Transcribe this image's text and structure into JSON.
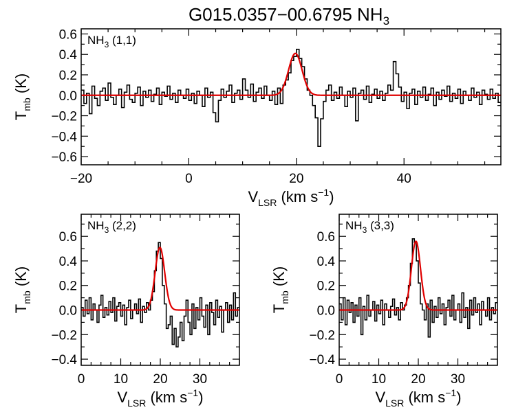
{
  "figure": {
    "title": "G015.0357−00.6795 NH",
    "title_sub": "3"
  },
  "chart_data": [
    {
      "type": "line",
      "panel_label": "NH3 (1,1)",
      "label_main": "NH",
      "label_sub": "3",
      "label_tail": " (1,1)",
      "xlabel": "V_LSR (km s^-1)",
      "ylabel": "T_mb (K)",
      "xlim": [
        -20,
        58
      ],
      "ylim": [
        -0.68,
        0.65
      ],
      "xticks": [
        -20,
        0,
        20,
        40
      ],
      "yticks": [
        -0.6,
        -0.4,
        -0.2,
        0.0,
        0.2,
        0.4,
        0.6
      ],
      "series": [
        {
          "kind": "step",
          "color": "#000000",
          "x": [
            -20,
            -19.5,
            -19,
            -18.5,
            -18,
            -17.5,
            -17,
            -16.5,
            -16,
            -15.5,
            -15,
            -14.5,
            -14,
            -13.5,
            -13,
            -12.5,
            -12,
            -11.5,
            -11,
            -10.5,
            -10,
            -9.5,
            -9,
            -8.5,
            -8,
            -7.5,
            -7,
            -6.5,
            -6,
            -5.5,
            -5,
            -4.5,
            -4,
            -3.5,
            -3,
            -2.5,
            -2,
            -1.5,
            -1,
            -0.5,
            0,
            0.5,
            1,
            1.5,
            2,
            2.5,
            3,
            3.5,
            4,
            4.5,
            5,
            5.5,
            6,
            6.5,
            7,
            7.5,
            8,
            8.5,
            9,
            9.5,
            10,
            10.5,
            11,
            11.5,
            12,
            12.5,
            13,
            13.5,
            14,
            14.5,
            15,
            15.5,
            16,
            16.5,
            17,
            17.5,
            18,
            18.5,
            19,
            19.5,
            20,
            20.5,
            21,
            21.5,
            22,
            22.5,
            23,
            23.5,
            24,
            24.5,
            25,
            25.5,
            26,
            26.5,
            27,
            27.5,
            28,
            28.5,
            29,
            29.5,
            30,
            30.5,
            31,
            31.5,
            32,
            32.5,
            33,
            33.5,
            34,
            34.5,
            35,
            35.5,
            36,
            36.5,
            37,
            37.5,
            38,
            38.5,
            39,
            39.5,
            40,
            40.5,
            41,
            41.5,
            42,
            42.5,
            43,
            43.5,
            44,
            44.5,
            45,
            45.5,
            46,
            46.5,
            47,
            47.5,
            48,
            48.5,
            49,
            49.5,
            50,
            50.5,
            51,
            51.5,
            52,
            52.5,
            53,
            53.5,
            54,
            54.5,
            55,
            55.5,
            56,
            56.5,
            57,
            57.5
          ],
          "y": [
            0.05,
            -0.08,
            0.02,
            -0.18,
            0.09,
            -0.03,
            -0.1,
            0.04,
            0.07,
            -0.05,
            0.12,
            -0.02,
            -0.09,
            0.0,
            0.06,
            -0.12,
            0.03,
            0.1,
            -0.04,
            -0.07,
            0.02,
            0.08,
            -0.1,
            0.04,
            -0.02,
            0.05,
            -0.06,
            0.01,
            0.07,
            -0.09,
            0.03,
            -0.01,
            0.09,
            -0.04,
            0.02,
            -0.07,
            0.05,
            0.0,
            -0.03,
            0.06,
            -0.05,
            0.02,
            -0.08,
            0.04,
            0.0,
            -0.11,
            0.07,
            -0.02,
            0.03,
            -0.17,
            -0.26,
            -0.05,
            0.06,
            -0.02,
            0.04,
            0.1,
            -0.07,
            0.02,
            0.05,
            -0.04,
            0.16,
            0.05,
            -0.02,
            0.11,
            -0.06,
            0.03,
            0.07,
            -0.03,
            0.09,
            0.0,
            -0.05,
            0.04,
            -0.09,
            0.07,
            -0.08,
            0.1,
            0.15,
            0.22,
            0.34,
            0.38,
            0.45,
            0.36,
            0.28,
            0.16,
            0.05,
            0.0,
            -0.1,
            -0.22,
            -0.5,
            -0.23,
            -0.06,
            0.05,
            0.1,
            -0.05,
            0.03,
            -0.03,
            0.08,
            0.0,
            -0.11,
            0.04,
            -0.02,
            0.07,
            -0.25,
            0.02,
            0.05,
            -0.04,
            0.09,
            -0.07,
            0.01,
            0.06,
            -0.03,
            0.04,
            -0.05,
            0.02,
            0.1,
            0.05,
            0.33,
            0.21,
            0.08,
            -0.06,
            0.03,
            -0.13,
            0.02,
            0.06,
            -0.09,
            0.04,
            -0.02,
            0.08,
            -0.05,
            0.01,
            0.07,
            -0.1,
            0.03,
            -0.04,
            0.05,
            -0.01,
            0.09,
            -0.06,
            0.02,
            -0.03,
            0.06,
            -0.08,
            0.04,
            0.0,
            -0.05,
            0.07,
            -0.02,
            0.03,
            -0.09,
            0.05,
            0.01,
            -0.04,
            0.06,
            -0.03,
            0.02,
            -0.07
          ]
        },
        {
          "kind": "gaussian",
          "color": "#e00000",
          "amp": 0.41,
          "center": 19.8,
          "sigma": 1.25
        }
      ]
    },
    {
      "type": "line",
      "panel_label": "NH3 (2,2)",
      "label_main": "NH",
      "label_sub": "3",
      "label_tail": " (2,2)",
      "xlabel": "V_LSR (km s^-1)",
      "ylabel": "T_mb (K)",
      "xlim": [
        0,
        40
      ],
      "ylim": [
        -0.45,
        0.78
      ],
      "xticks": [
        0,
        10,
        20,
        30
      ],
      "yticks": [
        -0.4,
        -0.2,
        0.0,
        0.2,
        0.4,
        0.6
      ],
      "series": [
        {
          "kind": "step",
          "color": "#000000",
          "x": [
            0,
            0.5,
            1,
            1.5,
            2,
            2.5,
            3,
            3.5,
            4,
            4.5,
            5,
            5.5,
            6,
            6.5,
            7,
            7.5,
            8,
            8.5,
            9,
            9.5,
            10,
            10.5,
            11,
            11.5,
            12,
            12.5,
            13,
            13.5,
            14,
            14.5,
            15,
            15.5,
            16,
            16.5,
            17,
            17.5,
            18,
            18.5,
            19,
            19.5,
            20,
            20.5,
            21,
            21.5,
            22,
            22.5,
            23,
            23.5,
            24,
            24.5,
            25,
            25.5,
            26,
            26.5,
            27,
            27.5,
            28,
            28.5,
            29,
            29.5,
            30,
            30.5,
            31,
            31.5,
            32,
            32.5,
            33,
            33.5,
            34,
            34.5,
            35,
            35.5,
            36,
            36.5,
            37,
            37.5,
            38,
            38.5,
            39,
            39.5
          ],
          "y": [
            0.02,
            -0.05,
            0.08,
            -0.03,
            0.1,
            -0.08,
            0.05,
            0.0,
            -0.1,
            0.04,
            0.12,
            -0.06,
            0.02,
            -0.04,
            0.07,
            -0.02,
            0.1,
            -0.09,
            0.03,
            0.06,
            -0.05,
            0.04,
            -0.12,
            0.02,
            0.08,
            -0.07,
            0.0,
            0.05,
            -0.03,
            0.09,
            -0.1,
            0.03,
            -0.02,
            0.06,
            0.0,
            0.08,
            0.15,
            0.32,
            0.48,
            0.55,
            0.42,
            0.2,
            0.05,
            -0.15,
            -0.12,
            -0.05,
            -0.28,
            -0.15,
            -0.3,
            -0.22,
            -0.1,
            -0.25,
            -0.05,
            0.08,
            -0.1,
            -0.2,
            0.05,
            -0.15,
            0.02,
            -0.08,
            0.1,
            -0.05,
            -0.14,
            0.04,
            -0.2,
            0.06,
            -0.02,
            -0.12,
            0.08,
            -0.06,
            0.03,
            -0.18,
            0.0,
            0.06,
            -0.1,
            0.04,
            -0.08,
            0.14,
            -0.05,
            0.02
          ]
        },
        {
          "kind": "gaussian",
          "color": "#e00000",
          "amp": 0.51,
          "center": 19.9,
          "sigma": 1.2
        }
      ]
    },
    {
      "type": "line",
      "panel_label": "NH3 (3,3)",
      "label_main": "NH",
      "label_sub": "3",
      "label_tail": " (3,3)",
      "xlabel": "V_LSR (km s^-1)",
      "ylabel": "T_mb (K)",
      "xlim": [
        0,
        40
      ],
      "ylim": [
        -0.45,
        0.78
      ],
      "xticks": [
        0,
        10,
        20,
        30
      ],
      "yticks": [
        -0.4,
        -0.2,
        0.0,
        0.2,
        0.4,
        0.6
      ],
      "series": [
        {
          "kind": "step",
          "color": "#000000",
          "x": [
            0,
            0.5,
            1,
            1.5,
            2,
            2.5,
            3,
            3.5,
            4,
            4.5,
            5,
            5.5,
            6,
            6.5,
            7,
            7.5,
            8,
            8.5,
            9,
            9.5,
            10,
            10.5,
            11,
            11.5,
            12,
            12.5,
            13,
            13.5,
            14,
            14.5,
            15,
            15.5,
            16,
            16.5,
            17,
            17.5,
            18,
            18.5,
            19,
            19.5,
            20,
            20.5,
            21,
            21.5,
            22,
            22.5,
            23,
            23.5,
            24,
            24.5,
            25,
            25.5,
            26,
            26.5,
            27,
            27.5,
            28,
            28.5,
            29,
            29.5,
            30,
            30.5,
            31,
            31.5,
            32,
            32.5,
            33,
            33.5,
            34,
            34.5,
            35,
            35.5,
            36,
            36.5,
            37,
            37.5,
            38,
            38.5,
            39,
            39.5
          ],
          "y": [
            0.05,
            -0.08,
            0.1,
            -0.12,
            0.08,
            -0.02,
            0.06,
            -0.1,
            0.04,
            -0.05,
            0.1,
            -0.2,
            0.03,
            -0.08,
            0.12,
            -0.05,
            0.0,
            0.07,
            -0.09,
            0.04,
            -0.03,
            0.08,
            -0.12,
            0.05,
            0.0,
            -0.06,
            0.03,
            0.09,
            -0.04,
            0.02,
            -0.08,
            0.06,
            0.0,
            0.04,
            0.1,
            0.2,
            0.38,
            0.58,
            0.55,
            0.4,
            0.22,
            0.05,
            0.0,
            -0.08,
            0.05,
            -0.22,
            0.08,
            -0.1,
            0.03,
            -0.06,
            0.1,
            -0.03,
            0.05,
            -0.12,
            0.02,
            0.08,
            -0.05,
            0.12,
            -0.08,
            0.0,
            0.05,
            -0.1,
            0.14,
            -0.06,
            0.02,
            -0.15,
            0.08,
            -0.04,
            0.1,
            -0.02,
            0.05,
            -0.12,
            0.07,
            0.0,
            -0.05,
            0.1,
            -0.08,
            0.02,
            -0.03,
            0.06
          ]
        },
        {
          "kind": "gaussian",
          "color": "#e00000",
          "amp": 0.56,
          "center": 19.4,
          "sigma": 1.15
        }
      ]
    }
  ]
}
